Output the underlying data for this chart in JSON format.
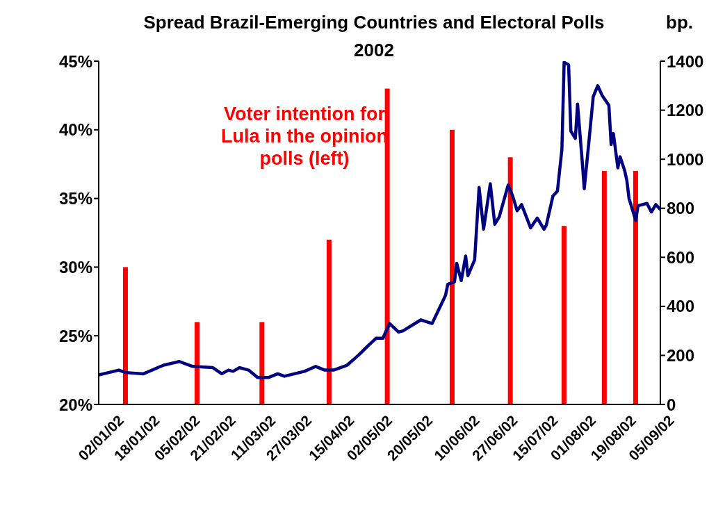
{
  "chart_data": {
    "type": "bar",
    "title": "Spread Brazil-Emerging Countries and Electoral Polls",
    "subtitle": "2002",
    "y2label": "bp.",
    "series": [
      {
        "name": "Voter intention for Lula in the opinion polls (left)",
        "color": "#ff0000",
        "x": [
          "2002-01-14",
          "2002-02-15",
          "2002-03-16",
          "2002-04-15",
          "2002-05-11",
          "2002-06-09",
          "2002-07-05",
          "2002-07-29",
          "2002-08-16",
          "2002-08-30"
        ],
        "values": [
          30,
          26,
          26,
          32,
          43,
          40,
          38,
          33,
          37,
          37
        ]
      },
      {
        "type": "line",
        "axis": "y2",
        "color": "#000080",
        "x": [
          "2002-01-02",
          "2002-01-11",
          "2002-01-14",
          "2002-01-22",
          "2002-01-31",
          "2002-02-07",
          "2002-02-13",
          "2002-02-22",
          "2002-02-26",
          "2002-03-01",
          "2002-03-03",
          "2002-03-06",
          "2002-03-10",
          "2002-03-14",
          "2002-03-19",
          "2002-03-23",
          "2002-03-26",
          "2002-04-04",
          "2002-04-09",
          "2002-04-13",
          "2002-04-17",
          "2002-04-23",
          "2002-04-28",
          "2002-05-03",
          "2002-05-06",
          "2002-05-09",
          "2002-05-12",
          "2002-05-16",
          "2002-05-18",
          "2002-05-26",
          "2002-05-31",
          "2002-06-06",
          "2002-06-07",
          "2002-06-10",
          "2002-06-11",
          "2002-06-13",
          "2002-06-15",
          "2002-06-16",
          "2002-06-19",
          "2002-06-21",
          "2002-06-23",
          "2002-06-26",
          "2002-06-28",
          "2002-06-30",
          "2002-07-04",
          "2002-07-06",
          "2002-07-08",
          "2002-07-10",
          "2002-07-14",
          "2002-07-17",
          "2002-07-20",
          "2002-07-21",
          "2002-07-24",
          "2002-07-26",
          "2002-07-28",
          "2002-07-29",
          "2002-07-31",
          "2002-08-01",
          "2002-08-03",
          "2002-08-04",
          "2002-08-06",
          "2002-08-07",
          "2002-08-09",
          "2002-08-11",
          "2002-08-13",
          "2002-08-15",
          "2002-08-18",
          "2002-08-19",
          "2002-08-20",
          "2002-08-22",
          "2002-08-23",
          "2002-08-25",
          "2002-08-26",
          "2002-08-27",
          "2002-08-30",
          "2002-08-31",
          "2002-09-04",
          "2002-09-06",
          "2002-09-08",
          "2002-09-10"
        ],
        "values": [
          120,
          140,
          130,
          125,
          160,
          175,
          155,
          150,
          125,
          140,
          135,
          150,
          140,
          110,
          110,
          125,
          115,
          135,
          155,
          140,
          140,
          160,
          200,
          245,
          270,
          270,
          330,
          295,
          300,
          345,
          330,
          445,
          490,
          500,
          575,
          505,
          605,
          525,
          590,
          885,
          715,
          900,
          735,
          765,
          895,
          850,
          790,
          815,
          720,
          760,
          715,
          730,
          850,
          870,
          1040,
          1395,
          1385,
          1115,
          1085,
          1225,
          1000,
          880,
          1065,
          1255,
          1300,
          1260,
          1220,
          1060,
          1105,
          965,
          1010,
          955,
          915,
          840,
          750,
          810,
          820,
          785,
          815,
          795
        ]
      }
    ],
    "xlim": [
      "2002-01-02",
      "2002-09-10"
    ],
    "xticks": [
      {
        "value": "2002-01-02",
        "label": "02/01/02"
      },
      {
        "value": "2002-01-18",
        "label": "18/01/02"
      },
      {
        "value": "2002-02-05",
        "label": "05/02/02"
      },
      {
        "value": "2002-02-21",
        "label": "21/02/02"
      },
      {
        "value": "2002-03-11",
        "label": "11/03/02"
      },
      {
        "value": "2002-03-27",
        "label": "27/03/02"
      },
      {
        "value": "2002-04-15",
        "label": "15/04/02"
      },
      {
        "value": "2002-05-02",
        "label": "02/05/02"
      },
      {
        "value": "2002-05-20",
        "label": "20/05/02"
      },
      {
        "value": "2002-06-10",
        "label": "10/06/02"
      },
      {
        "value": "2002-06-27",
        "label": "27/06/02"
      },
      {
        "value": "2002-07-15",
        "label": "15/07/02"
      },
      {
        "value": "2002-08-01",
        "label": "01/08/02"
      },
      {
        "value": "2002-08-19",
        "label": "19/08/02"
      },
      {
        "value": "2002-09-05",
        "label": "05/09/02"
      }
    ],
    "ylim": [
      20,
      45
    ],
    "yticks": [
      {
        "value": 20,
        "label": "20%"
      },
      {
        "value": 25,
        "label": "25%"
      },
      {
        "value": 30,
        "label": "30%"
      },
      {
        "value": 35,
        "label": "35%"
      },
      {
        "value": 40,
        "label": "40%"
      },
      {
        "value": 45,
        "label": "45%"
      }
    ],
    "y2lim": [
      0,
      1400
    ],
    "y2ticks": [
      0,
      200,
      400,
      600,
      800,
      1000,
      1200,
      1400
    ],
    "grid": false,
    "legend": false
  }
}
